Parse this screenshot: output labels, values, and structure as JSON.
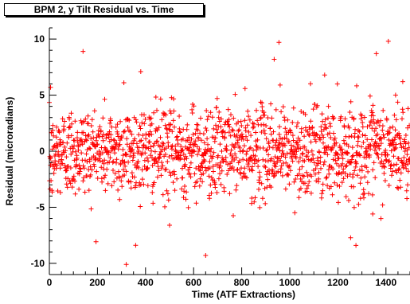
{
  "chart_data": {
    "type": "scatter",
    "title": "BPM 2, y Tilt Residual vs. Time",
    "xlabel": "Time (ATF Extractions)",
    "ylabel": "Residual (microradians)",
    "xlim": [
      0,
      1500
    ],
    "ylim": [
      -11,
      11
    ],
    "x_ticks": [
      0,
      200,
      400,
      600,
      800,
      1000,
      1200,
      1400
    ],
    "y_ticks": [
      -10,
      -5,
      0,
      5,
      10
    ],
    "marker": "+",
    "marker_color": "#ff0000",
    "grid": false,
    "legend": "none",
    "point_count": 1500,
    "noise_sigma": 2.0,
    "outliers": [
      {
        "x": 140,
        "y": 8.9
      },
      {
        "x": 5,
        "y": 5.7
      },
      {
        "x": 380,
        "y": 7.1
      },
      {
        "x": 310,
        "y": 6.1
      },
      {
        "x": 320,
        "y": -10.1
      },
      {
        "x": 500,
        "y": -6.6
      },
      {
        "x": 650,
        "y": -9.3
      },
      {
        "x": 955,
        "y": 9.7
      },
      {
        "x": 935,
        "y": 8.2
      },
      {
        "x": 960,
        "y": 5.9
      },
      {
        "x": 1145,
        "y": 6.8
      },
      {
        "x": 1275,
        "y": -8.4
      },
      {
        "x": 1345,
        "y": -5.6
      },
      {
        "x": 1410,
        "y": 9.8
      },
      {
        "x": 1360,
        "y": 8.7
      },
      {
        "x": 1470,
        "y": 6.2
      },
      {
        "x": 1440,
        "y": 5.0
      },
      {
        "x": 1490,
        "y": -3.0
      }
    ]
  }
}
